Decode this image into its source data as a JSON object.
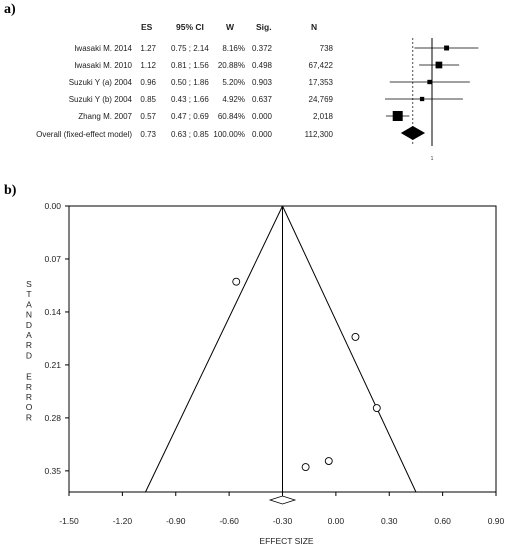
{
  "panel_a_label": "a)",
  "panel_b_label": "b)",
  "forest": {
    "headers": {
      "es": "ES",
      "ci": "95% CI",
      "w": "W",
      "sig": "Sig.",
      "n": "N"
    },
    "studies": [
      {
        "name": "Iwasaki M. 2014",
        "es": "1.27",
        "ci": "0.75 ; 2.14",
        "w": "8.16%",
        "sig": "0.372",
        "n": "738"
      },
      {
        "name": "Iwasaki M. 2010",
        "es": "1.12",
        "ci": "0.81 ; 1.56",
        "w": "20.88%",
        "sig": "0.498",
        "n": "67,422"
      },
      {
        "name": "Suzuki Y (a) 2004",
        "es": "0.96",
        "ci": "0.50 ; 1.86",
        "w": "5.20%",
        "sig": "0.903",
        "n": "17,353"
      },
      {
        "name": "Suzuki Y (b) 2004",
        "es": "0.85",
        "ci": "0.43 ; 1.66",
        "w": "4.92%",
        "sig": "0.637",
        "n": "24,769"
      },
      {
        "name": "Zhang M. 2007",
        "es": "0.57",
        "ci": "0.47 ; 0.69",
        "w": "60.84%",
        "sig": "0.000",
        "n": "2,018"
      }
    ],
    "overall": {
      "name": "Overall (fixed-effect model)",
      "es": "0.73",
      "ci": "0.63 ; 0.85",
      "w": "100.00%",
      "sig": "0.000",
      "n": "112,300"
    },
    "axis_tick_label": "1"
  },
  "chart_data": {
    "type": "scatter",
    "subtype": "funnel",
    "xlabel": "EFFECT SIZE",
    "ylabel": "STANDARD ERROR",
    "xlim": [
      -1.5,
      0.9
    ],
    "ylim": [
      0.0,
      0.37
    ],
    "y_reversed": true,
    "x_ticks": [
      "-1.50",
      "-1.20",
      "-0.90",
      "-0.60",
      "-0.30",
      "0.00",
      "0.30",
      "0.60",
      "0.90"
    ],
    "y_ticks": [
      "0.00",
      "0.07",
      "0.14",
      "0.21",
      "0.28",
      "0.35"
    ],
    "pooled_effect": -0.3,
    "funnel_apex": {
      "x": -0.3,
      "y": 0.0
    },
    "funnel_base": {
      "y": 0.37,
      "x_left": -1.07,
      "x_right": 0.45
    },
    "diamond": {
      "center": -0.3,
      "half_width": 0.07
    },
    "points": [
      {
        "x": -0.56,
        "y": 0.1
      },
      {
        "x": 0.11,
        "y": 0.173
      },
      {
        "x": 0.23,
        "y": 0.267
      },
      {
        "x": -0.04,
        "y": 0.337
      },
      {
        "x": -0.17,
        "y": 0.345
      }
    ]
  }
}
